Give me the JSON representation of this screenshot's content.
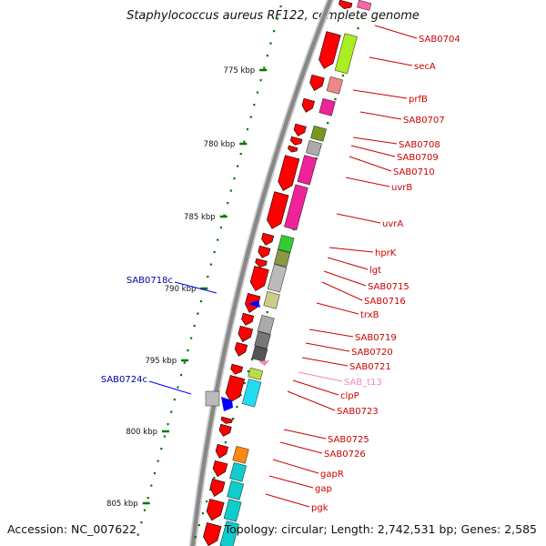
{
  "title": "Staphylococcus aureus RF122, complete genome",
  "accession": "Accession: NC_007622",
  "topology": "Topology: circular; Length: 2,742,531 bp; Genes: 2,585",
  "scale_ticks": [
    "775 kbp",
    "780 kbp",
    "785 kbp",
    "790 kbp",
    "795 kbp",
    "800 kbp",
    "805 kbp"
  ],
  "right_labels": [
    "SAB0704",
    "secA",
    "prfB",
    "SAB0707",
    "SAB0708",
    "SAB0709",
    "SAB0710",
    "uvrB",
    "uvrA",
    "hprK",
    "lgt",
    "SAB0715",
    "SAB0716",
    "trxB",
    "SAB0719",
    "SAB0720",
    "SAB0721",
    "SAB_t13",
    "clpP",
    "SAB0723",
    "SAB0725",
    "SAB0726",
    "gapR",
    "gap",
    "pgk"
  ],
  "left_labels": [
    "SAB0718c",
    "SAB0724c"
  ],
  "colors": {
    "forward_gene": "#ff0000",
    "reverse_gene": "#0000ff",
    "backbone": "#888888",
    "tick_mark": "#007700",
    "label_red": "#cc0000",
    "label_blue": "#0000aa",
    "label_trna": "#ee88bb"
  }
}
